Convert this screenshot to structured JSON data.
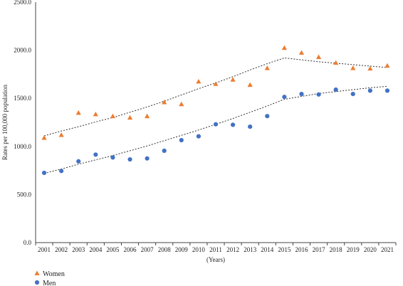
{
  "chart_data": {
    "type": "scatter",
    "xlabel": "(Years)",
    "ylabel": "Rates per 100,000 population",
    "ylim": [
      0,
      2500
    ],
    "yticks": [
      "0.0",
      "500.0",
      "1000.0",
      "1500.0",
      "2000.0",
      "2500.0"
    ],
    "x": [
      "2001",
      "2002",
      "2003",
      "2004",
      "2005",
      "2006",
      "2007",
      "2008",
      "2009",
      "2010",
      "2011",
      "2012",
      "2013",
      "2014",
      "2015",
      "2016",
      "2017",
      "2018",
      "2019",
      "2020",
      "2021"
    ],
    "grid": false,
    "legend_position": "bottom-left",
    "series": [
      {
        "name": "Women",
        "marker": "triangle",
        "color": "#ED7D31",
        "values": [
          1090,
          1120,
          1350,
          1335,
          1315,
          1300,
          1315,
          1460,
          1440,
          1675,
          1650,
          1695,
          1640,
          1815,
          2025,
          1975,
          1930,
          1870,
          1815,
          1810,
          1840
        ],
        "trend": [
          1110,
          1160,
          1205,
          1255,
          1300,
          1355,
          1410,
          1470,
          1535,
          1600,
          1660,
          1725,
          1795,
          1860,
          1920,
          1900,
          1880,
          1865,
          1850,
          1835,
          1820
        ]
      },
      {
        "name": "Men",
        "marker": "circle",
        "color": "#4472C4",
        "values": [
          725,
          745,
          845,
          915,
          885,
          865,
          875,
          955,
          1065,
          1105,
          1230,
          1225,
          1205,
          1315,
          1515,
          1545,
          1540,
          1590,
          1545,
          1580,
          1580
        ],
        "trend": [
          720,
          765,
          815,
          860,
          905,
          955,
          1005,
          1060,
          1115,
          1170,
          1230,
          1290,
          1355,
          1420,
          1490,
          1520,
          1550,
          1570,
          1590,
          1610,
          1625
        ]
      }
    ]
  }
}
